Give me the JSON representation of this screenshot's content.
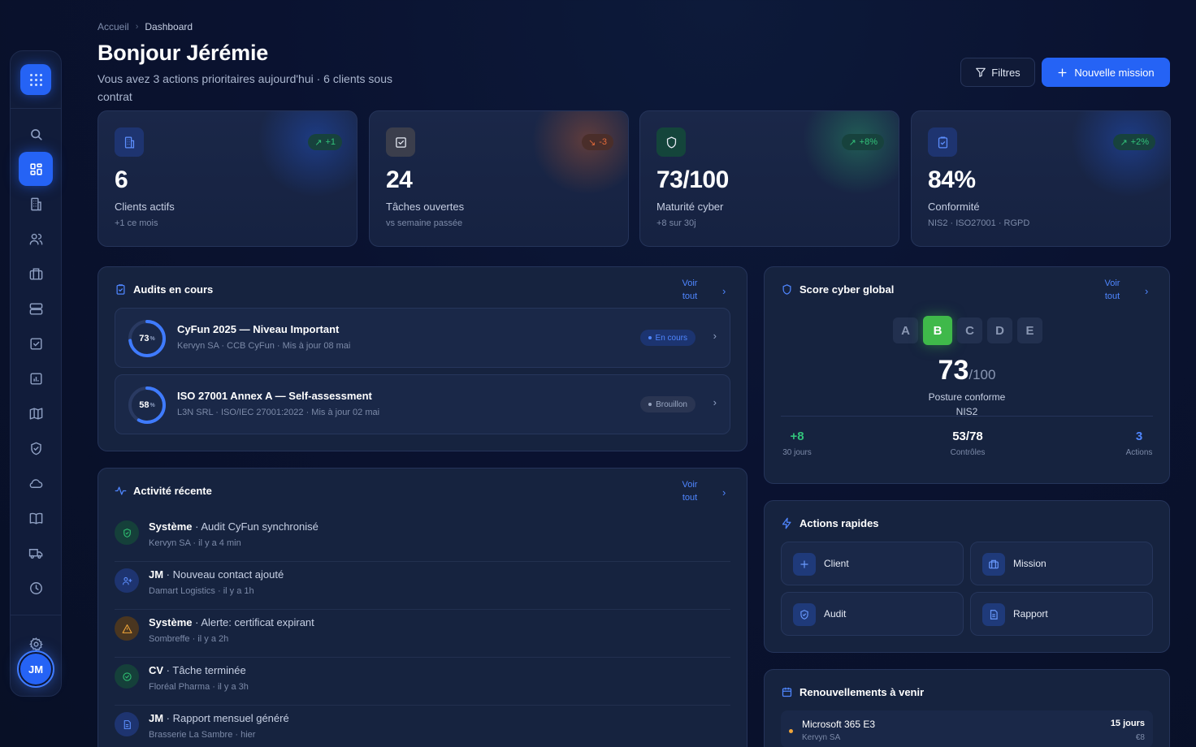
{
  "breadcrumb": {
    "home": "Accueil",
    "current": "Dashboard"
  },
  "header": {
    "title": "Bonjour Jérémie",
    "subtitle": "Vous avez 3 actions prioritaires aujourd'hui · 6 clients sous contrat",
    "filter_label": "Filtres",
    "new_mission_label": "Nouvelle mission"
  },
  "sidebar": {
    "avatar_initials": "JM"
  },
  "kpis": [
    {
      "value": "6",
      "label": "Clients actifs",
      "note": "+1 ce mois",
      "trend": "+1",
      "color": "#2563f5"
    },
    {
      "value": "24",
      "label": "Tâches ouvertes",
      "note": "vs semaine passée",
      "trend": "-3",
      "color": "#e0662a"
    },
    {
      "value": "73/100",
      "label": "Maturité cyber",
      "note": "+8 sur 30j",
      "trend": "+8%",
      "color": "#2fbf71"
    },
    {
      "value": "84%",
      "label": "Conformité",
      "note": "NIS2 · ISO27001 · RGPD",
      "trend": "+2%",
      "color": "#2563f5"
    }
  ],
  "audits": {
    "title": "Audits en cours",
    "see_all": "Voir tout",
    "items": [
      {
        "percent": "73",
        "pct_unit": "%",
        "progress": 0.73,
        "title": "CyFun 2025 — Niveau Important",
        "meta": "Kervyn SA · CCB CyFun · Mis à jour 08 mai",
        "status": "En cours"
      },
      {
        "percent": "58",
        "pct_unit": "%",
        "progress": 0.58,
        "title": "ISO 27001 Annex A — Self-assessment",
        "meta": "L3N SRL · ISO/IEC 27001:2022 · Mis à jour 02 mai",
        "status": "Brouillon"
      }
    ]
  },
  "activity": {
    "title": "Activité récente",
    "see_all": "Voir tout",
    "items": [
      {
        "actor": "Système",
        "text": " · Audit CyFun synchronisé",
        "meta": "Kervyn SA · il y a 4 min",
        "icon": "shield-check-icon"
      },
      {
        "actor": "JM",
        "text": " · Nouveau contact ajouté",
        "meta": "Damart Logistics · il y a 1h",
        "icon": "user-plus-icon"
      },
      {
        "actor": "Système",
        "text": " · Alerte: certificat expirant",
        "meta": "Sombreffe · il y a 2h",
        "icon": "warning-icon"
      },
      {
        "actor": "CV",
        "text": " · Tâche terminée",
        "meta": "Floréal Pharma · il y a 3h",
        "icon": "check-circle-icon"
      },
      {
        "actor": "JM",
        "text": " · Rapport mensuel généré",
        "meta": "Brasserie La Sambre · hier",
        "icon": "document-icon"
      }
    ]
  },
  "score": {
    "title": "Score cyber global",
    "see_all": "Voir tout",
    "grades": [
      "A",
      "B",
      "C",
      "D",
      "E"
    ],
    "active_grade": "B",
    "value": "73",
    "max": "/100",
    "caption": "Posture conforme NIS2",
    "stats": [
      {
        "value": "+8",
        "label": "30 jours"
      },
      {
        "value": "53/78",
        "label": "Contrôles"
      },
      {
        "value": "3",
        "label": "Actions"
      }
    ]
  },
  "quick_actions": {
    "title": "Actions rapides",
    "items": [
      "Client",
      "Mission",
      "Audit",
      "Rapport"
    ]
  },
  "renewals": {
    "title": "Renouvellements à venir",
    "items": [
      {
        "name": "Microsoft 365 E3",
        "client": "Kervyn SA",
        "days": "15 jours",
        "price": "€8"
      }
    ]
  }
}
